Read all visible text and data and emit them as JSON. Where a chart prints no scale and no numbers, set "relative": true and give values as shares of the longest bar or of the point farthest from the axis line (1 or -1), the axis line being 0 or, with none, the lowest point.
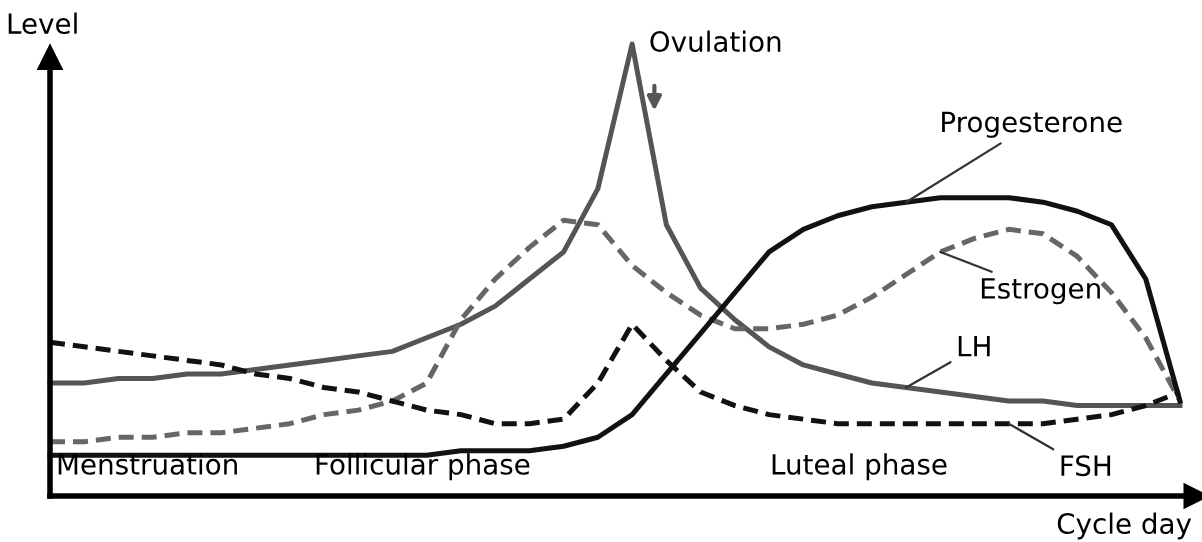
{
  "chart_data": {
    "type": "line",
    "relative": true,
    "xlabel": "Cycle day",
    "ylabel": "Level",
    "categories": [
      null,
      null,
      null,
      null,
      null,
      null,
      null,
      null,
      null,
      null,
      null,
      null,
      null,
      null,
      null,
      null,
      null,
      null,
      null,
      null,
      null,
      null,
      null,
      null,
      null,
      null,
      null,
      null,
      null,
      null,
      null,
      null,
      null,
      null
    ],
    "series": [
      {
        "name": "LH",
        "color": "#555555",
        "line_style": "solid",
        "values": [
          0.25,
          0.25,
          0.26,
          0.26,
          0.27,
          0.27,
          0.28,
          0.29,
          0.3,
          0.31,
          0.32,
          0.35,
          0.38,
          0.42,
          0.48,
          0.54,
          0.68,
          1,
          0.6,
          0.46,
          0.39,
          0.33,
          0.29,
          0.27,
          0.25,
          0.24,
          0.23,
          0.22,
          0.21,
          0.21,
          0.2,
          0.2,
          0.2,
          0.2
        ]
      },
      {
        "name": "Estrogen",
        "color": "#666666",
        "line_style": "dashed",
        "values": [
          0.12,
          0.12,
          0.13,
          0.13,
          0.14,
          0.14,
          0.15,
          0.16,
          0.18,
          0.19,
          0.21,
          0.25,
          0.39,
          0.48,
          0.55,
          0.61,
          0.6,
          0.51,
          0.45,
          0.4,
          0.37,
          0.37,
          0.38,
          0.4,
          0.44,
          0.49,
          0.54,
          0.57,
          0.59,
          0.58,
          0.53,
          0.45,
          0.35,
          0.21
        ]
      },
      {
        "name": "Progesterone",
        "color": "#111111",
        "line_style": "solid",
        "values": [
          0.09,
          0.09,
          0.09,
          0.09,
          0.09,
          0.09,
          0.09,
          0.09,
          0.09,
          0.09,
          0.09,
          0.09,
          0.1,
          0.1,
          0.1,
          0.11,
          0.13,
          0.18,
          0.27,
          0.36,
          0.45,
          0.54,
          0.59,
          0.62,
          0.64,
          0.65,
          0.66,
          0.66,
          0.66,
          0.65,
          0.63,
          0.6,
          0.48,
          0.21
        ]
      },
      {
        "name": "FSH",
        "color": "#111111",
        "line_style": "dashed",
        "values": [
          0.34,
          0.33,
          0.32,
          0.31,
          0.3,
          0.29,
          0.27,
          0.26,
          0.24,
          0.23,
          0.21,
          0.19,
          0.18,
          0.16,
          0.16,
          0.17,
          0.25,
          0.38,
          0.3,
          0.23,
          0.2,
          0.18,
          0.17,
          0.16,
          0.16,
          0.16,
          0.16,
          0.16,
          0.16,
          0.16,
          0.17,
          0.18,
          0.2,
          0.23
        ]
      }
    ],
    "annotations": [
      "Ovulation",
      "Menstruation",
      "Follicular phase",
      "Luteal phase"
    ]
  }
}
